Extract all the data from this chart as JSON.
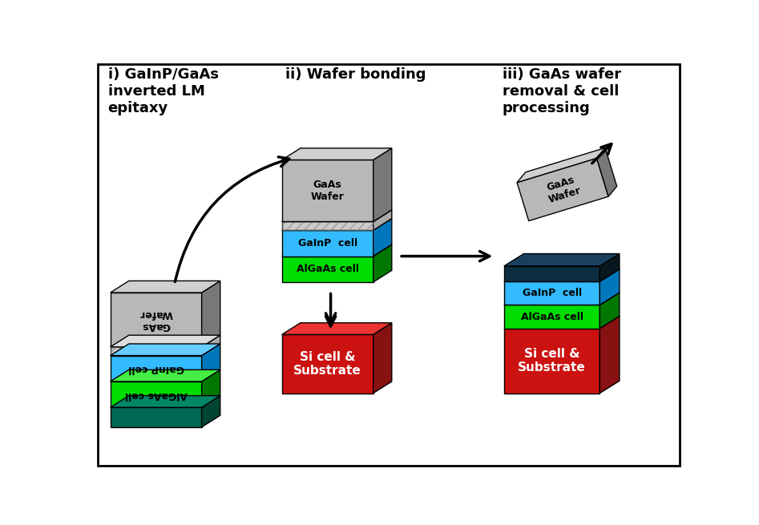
{
  "bg_color": "#ffffff",
  "step_titles": [
    "i) GaInP/GaAs\ninverted LM\nepitaxy",
    "ii) Wafer bonding",
    "iii) GaAs wafer\nremoval & cell\nprocessing"
  ],
  "colors": {
    "gaas_wafer_front": "#b8b8b8",
    "gaas_wafer_side": "#787878",
    "gaas_wafer_top": "#d0d0d0",
    "gainp_front": "#33bbff",
    "gainp_side": "#0077bb",
    "gainp_top": "#66ccff",
    "algaas_front": "#00dd00",
    "algaas_side": "#007700",
    "algaas_top": "#44ee44",
    "dark_teal_front": "#006655",
    "dark_teal_side": "#004433",
    "dark_teal_top": "#008866",
    "si_front": "#cc1111",
    "si_side": "#881111",
    "si_top": "#ee3333",
    "navy_front": "#0d2d42",
    "navy_side": "#071820",
    "navy_top": "#1a4060",
    "hatch_front": "#cccccc",
    "hatch_side": "#aaaaaa",
    "hatch_top": "#dddddd"
  },
  "border_color": "#000000"
}
